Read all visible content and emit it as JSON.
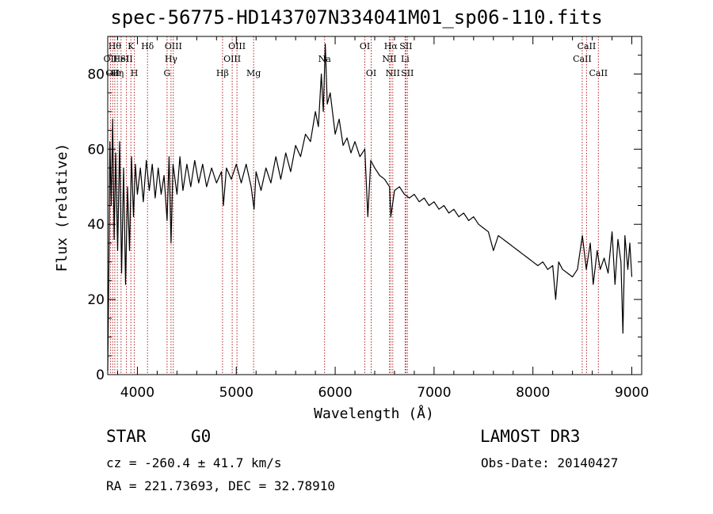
{
  "header": {
    "title": "spec-56775-HD143707N334041M01_sp06-110.fits"
  },
  "info": {
    "class_label": "STAR",
    "subclass_label": "G0",
    "survey": "LAMOST DR3",
    "cz": "cz = -260.4 ± 41.7 km/s",
    "obs_date": "Obs-Date: 20140427",
    "coords": "RA = 221.73693, DEC =  32.78910"
  },
  "chart_data": {
    "type": "line",
    "title": "spec-56775-HD143707N334041M01_sp06-110.fits",
    "xlabel": "Wavelength (Å)",
    "ylabel": "Flux (relative)",
    "xlim": [
      3700,
      9100
    ],
    "ylim": [
      0,
      90
    ],
    "xticks": [
      4000,
      5000,
      6000,
      7000,
      8000,
      9000
    ],
    "xtick_labels": [
      "4000",
      "5000",
      "6000",
      "7000",
      "8000",
      "9000"
    ],
    "yticks": [
      0,
      20,
      40,
      60,
      80
    ],
    "ytick_labels": [
      "0",
      "20",
      "40",
      "60",
      "80"
    ],
    "series": [
      {
        "name": "flux",
        "points": [
          [
            3700,
            1
          ],
          [
            3712,
            30
          ],
          [
            3722,
            62
          ],
          [
            3735,
            45
          ],
          [
            3750,
            68
          ],
          [
            3765,
            36
          ],
          [
            3780,
            59
          ],
          [
            3800,
            33
          ],
          [
            3820,
            62
          ],
          [
            3840,
            27
          ],
          [
            3860,
            55
          ],
          [
            3880,
            24
          ],
          [
            3900,
            50
          ],
          [
            3920,
            33
          ],
          [
            3940,
            58
          ],
          [
            3960,
            42
          ],
          [
            3980,
            56
          ],
          [
            4000,
            48
          ],
          [
            4030,
            55
          ],
          [
            4060,
            46
          ],
          [
            4090,
            57
          ],
          [
            4120,
            49
          ],
          [
            4150,
            56
          ],
          [
            4180,
            47
          ],
          [
            4210,
            55
          ],
          [
            4240,
            48
          ],
          [
            4270,
            53
          ],
          [
            4300,
            41
          ],
          [
            4320,
            58
          ],
          [
            4340,
            35
          ],
          [
            4360,
            56
          ],
          [
            4400,
            48
          ],
          [
            4430,
            58
          ],
          [
            4460,
            49
          ],
          [
            4500,
            56
          ],
          [
            4540,
            50
          ],
          [
            4580,
            57
          ],
          [
            4620,
            51
          ],
          [
            4660,
            56
          ],
          [
            4700,
            50
          ],
          [
            4750,
            55
          ],
          [
            4800,
            51
          ],
          [
            4850,
            54
          ],
          [
            4870,
            45
          ],
          [
            4900,
            55
          ],
          [
            4950,
            52
          ],
          [
            5000,
            56
          ],
          [
            5050,
            51
          ],
          [
            5100,
            56
          ],
          [
            5150,
            50
          ],
          [
            5180,
            44
          ],
          [
            5200,
            54
          ],
          [
            5250,
            49
          ],
          [
            5300,
            55
          ],
          [
            5350,
            51
          ],
          [
            5400,
            58
          ],
          [
            5450,
            52
          ],
          [
            5500,
            59
          ],
          [
            5550,
            54
          ],
          [
            5600,
            61
          ],
          [
            5650,
            58
          ],
          [
            5700,
            64
          ],
          [
            5750,
            62
          ],
          [
            5800,
            70
          ],
          [
            5830,
            66
          ],
          [
            5860,
            80
          ],
          [
            5880,
            70
          ],
          [
            5900,
            88
          ],
          [
            5920,
            72
          ],
          [
            5950,
            75
          ],
          [
            6000,
            64
          ],
          [
            6040,
            68
          ],
          [
            6080,
            61
          ],
          [
            6120,
            63
          ],
          [
            6160,
            59
          ],
          [
            6200,
            62
          ],
          [
            6250,
            58
          ],
          [
            6300,
            60
          ],
          [
            6330,
            42
          ],
          [
            6360,
            57
          ],
          [
            6400,
            55
          ],
          [
            6450,
            53
          ],
          [
            6500,
            52
          ],
          [
            6550,
            50
          ],
          [
            6563,
            42
          ],
          [
            6600,
            49
          ],
          [
            6650,
            50
          ],
          [
            6700,
            48
          ],
          [
            6750,
            47
          ],
          [
            6800,
            48
          ],
          [
            6850,
            46
          ],
          [
            6900,
            47
          ],
          [
            6950,
            45
          ],
          [
            7000,
            46
          ],
          [
            7050,
            44
          ],
          [
            7100,
            45
          ],
          [
            7150,
            43
          ],
          [
            7200,
            44
          ],
          [
            7250,
            42
          ],
          [
            7300,
            43
          ],
          [
            7350,
            41
          ],
          [
            7400,
            42
          ],
          [
            7450,
            40
          ],
          [
            7500,
            39
          ],
          [
            7550,
            38
          ],
          [
            7600,
            33
          ],
          [
            7650,
            37
          ],
          [
            7700,
            36
          ],
          [
            7750,
            35
          ],
          [
            7800,
            34
          ],
          [
            7850,
            33
          ],
          [
            7900,
            32
          ],
          [
            7950,
            31
          ],
          [
            8000,
            30
          ],
          [
            8050,
            29
          ],
          [
            8100,
            30
          ],
          [
            8150,
            28
          ],
          [
            8200,
            29
          ],
          [
            8230,
            20
          ],
          [
            8260,
            30
          ],
          [
            8300,
            28
          ],
          [
            8350,
            27
          ],
          [
            8400,
            26
          ],
          [
            8450,
            28
          ],
          [
            8500,
            37
          ],
          [
            8540,
            28
          ],
          [
            8580,
            35
          ],
          [
            8610,
            24
          ],
          [
            8650,
            33
          ],
          [
            8680,
            28
          ],
          [
            8720,
            31
          ],
          [
            8760,
            27
          ],
          [
            8800,
            38
          ],
          [
            8830,
            24
          ],
          [
            8860,
            36
          ],
          [
            8890,
            30
          ],
          [
            8910,
            11
          ],
          [
            8930,
            37
          ],
          [
            8960,
            28
          ],
          [
            8980,
            35
          ],
          [
            9000,
            26
          ]
        ]
      }
    ],
    "lines": [
      {
        "wl": 3727,
        "label": "OII",
        "row": 2
      },
      {
        "wl": 3750,
        "label": "OII",
        "row": 3
      },
      {
        "wl": 3771,
        "label": "Hθ",
        "row": 1
      },
      {
        "wl": 3798,
        "label": "Hη",
        "row": 3
      },
      {
        "wl": 3835,
        "label": "HeI",
        "row": 2
      },
      {
        "wl": 3889,
        "label": "SII",
        "row": 2
      },
      {
        "wl": 3934,
        "label": "K",
        "row": 1
      },
      {
        "wl": 3969,
        "label": "H",
        "row": 3
      },
      {
        "wl": 4102,
        "label": "Hδ",
        "row": 1
      },
      {
        "wl": 4300,
        "label": "G",
        "row": 3
      },
      {
        "wl": 4340,
        "label": "Hγ",
        "row": 2
      },
      {
        "wl": 4363,
        "label": "OIII",
        "row": 1
      },
      {
        "wl": 4861,
        "label": "Hβ",
        "row": 3
      },
      {
        "wl": 4959,
        "label": "OIII",
        "row": 2
      },
      {
        "wl": 5007,
        "label": "OIII",
        "row": 1
      },
      {
        "wl": 5175,
        "label": "Mg",
        "row": 3
      },
      {
        "wl": 5893,
        "label": "Na",
        "row": 2
      },
      {
        "wl": 6300,
        "label": "OI",
        "row": 1
      },
      {
        "wl": 6364,
        "label": "OI",
        "row": 3
      },
      {
        "wl": 6548,
        "label": "NII",
        "row": 2
      },
      {
        "wl": 6563,
        "label": "Hα",
        "row": 1
      },
      {
        "wl": 6583,
        "label": "NII",
        "row": 3
      },
      {
        "wl": 6708,
        "label": "Li",
        "row": 2
      },
      {
        "wl": 6716,
        "label": "SII",
        "row": 1
      },
      {
        "wl": 6731,
        "label": "SII",
        "row": 3
      },
      {
        "wl": 8498,
        "label": "CaII",
        "row": 2
      },
      {
        "wl": 8542,
        "label": "CaII",
        "row": 1
      },
      {
        "wl": 8662,
        "label": "CaII",
        "row": 3
      }
    ]
  }
}
